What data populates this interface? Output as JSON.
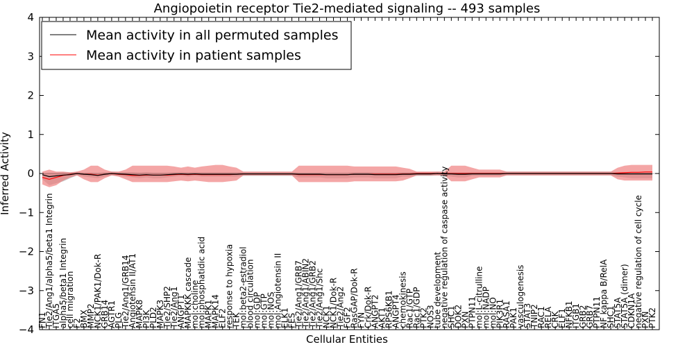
{
  "chart_data": {
    "type": "line",
    "title": "Angiopoietin receptor Tie2-mediated signaling -- 493 samples",
    "xlabel": "Cellular Entities",
    "ylabel": "Inferred Activity",
    "ylim": [
      -4,
      4
    ],
    "yticks": [
      -4,
      -3,
      -2,
      -1,
      0,
      1,
      2,
      3,
      4
    ],
    "grid": false,
    "legend_position": "top-left",
    "colors": {
      "permuted": "#000000",
      "patient": "#ff0000",
      "patient_band": "#f08080",
      "permuted_band": "#b0b0b0"
    },
    "categories": [
      "FN1",
      "Tie2/Ang1/alpha5/beta1 Integrin",
      "ITGA5",
      "alpha5/beta1 Integrin",
      "cell migration",
      "F2",
      "BMX",
      "MMP2",
      "NCK1/PAK1/Dok-R",
      "GRB14",
      "AGTR1",
      "PLG",
      "Tie2/Ang1/GRB14",
      "Angiotensin II/AT1",
      "MAPK8",
      "PI3K",
      "PLD2",
      "MAPK3",
      "Tie2/SHP2",
      "Tie2/Ang1",
      "ANGPT1",
      "MAPKKK cascade",
      "mol:choline",
      "mol:phosphatidic acid",
      "MAPK1",
      "MAPK14",
      "ELF2",
      "response to hypoxia",
      "TEK",
      "mol:beta2-estradiol",
      "blood circulation",
      "mol:GDP",
      "mol:GTP",
      "mol:NOS",
      "mol:Angiotensin II",
      "ELK1",
      "FES",
      "Tie2/Ang1/GRB7",
      "Tie2/Ang1/ABIN2",
      "Tie2/Ang1/GRB2",
      "Tie2/Ang1/Shc",
      "NCK1",
      "NCK1/Dok-R",
      "Tie2/Ang2",
      "FGF2",
      "RasGAP/Dok-R",
      "FYN",
      "Crk/Dok-R",
      "ANGPT2",
      "AKT1",
      "RPS6KB1",
      "ANGPT4",
      "chemokinesis",
      "Rac1/GTP",
      "Rac1/GDP",
      "PTK2",
      "NOS3",
      "tube development",
      "negative regulation of caspase activity",
      "SHC1",
      "DOK2",
      "PXN",
      "PTPN11",
      "mol:L-citrulline",
      "mol:NADP",
      "mol:NO",
      "PIK3R1",
      "RASA1",
      "PAK1",
      "vasculogenesis",
      "STAT3",
      "TNIP2",
      "RAC1",
      "RELA",
      "CRK",
      "ELF1",
      "NFKB1",
      "ITGB1",
      "GRB2",
      "GRB7",
      "PTPN11",
      "NF kappa B/RelA",
      "SHC1",
      "STAT5A",
      "STAT5A (dimer)",
      "CDKN1A",
      "negative regulation of cell cycle",
      "PXN",
      "PTK2"
    ],
    "series": [
      {
        "name": "Mean activity in all permuted samples",
        "color": "#000000",
        "values": [
          -0.03,
          -0.08,
          -0.06,
          -0.04,
          -0.03,
          0.0,
          -0.02,
          -0.03,
          -0.05,
          -0.02,
          0.0,
          -0.01,
          -0.02,
          -0.03,
          -0.04,
          -0.03,
          -0.04,
          -0.04,
          -0.03,
          -0.02,
          -0.01,
          -0.02,
          -0.01,
          -0.02,
          -0.02,
          -0.02,
          -0.02,
          -0.02,
          -0.02,
          -0.01,
          -0.01,
          -0.01,
          -0.01,
          -0.01,
          -0.01,
          -0.01,
          -0.01,
          -0.02,
          -0.02,
          -0.02,
          -0.02,
          -0.03,
          -0.03,
          -0.03,
          -0.03,
          -0.02,
          -0.02,
          -0.02,
          -0.03,
          -0.03,
          -0.03,
          -0.03,
          -0.02,
          -0.02,
          -0.01,
          -0.01,
          -0.01,
          0.0,
          -0.01,
          -0.01,
          -0.02,
          -0.02,
          -0.01,
          -0.01,
          -0.01,
          -0.01,
          -0.01,
          0.0,
          0.0,
          0.0,
          0.0,
          0.0,
          0.0,
          0.0,
          0.0,
          0.0,
          0.0,
          0.0,
          0.0,
          0.0,
          0.0,
          0.0,
          0.0,
          -0.01,
          -0.01,
          -0.01,
          -0.01,
          -0.01,
          -0.01
        ],
        "upper": [
          0.0,
          0.02,
          0.02,
          0.03,
          0.02,
          0.05,
          0.02,
          0.02,
          0.01,
          0.03,
          0.05,
          0.04,
          0.03,
          0.03,
          0.02,
          0.03,
          0.02,
          0.02,
          0.02,
          0.03,
          0.04,
          0.03,
          0.04,
          0.03,
          0.03,
          0.03,
          0.03,
          0.03,
          0.03,
          0.04,
          0.04,
          0.04,
          0.04,
          0.04,
          0.04,
          0.04,
          0.04,
          0.02,
          0.02,
          0.02,
          0.02,
          0.02,
          0.02,
          0.02,
          0.02,
          0.03,
          0.03,
          0.03,
          0.02,
          0.02,
          0.02,
          0.02,
          0.03,
          0.03,
          0.04,
          0.04,
          0.04,
          0.05,
          0.04,
          0.04,
          0.03,
          0.03,
          0.04,
          0.04,
          0.04,
          0.04,
          0.04,
          0.05,
          0.05,
          0.05,
          0.05,
          0.05,
          0.05,
          0.05,
          0.05,
          0.05,
          0.05,
          0.05,
          0.05,
          0.05,
          0.05,
          0.05,
          0.05,
          0.04,
          0.04,
          0.04,
          0.04,
          0.04,
          0.04
        ],
        "lower": [
          -0.15,
          -0.3,
          -0.25,
          -0.2,
          -0.12,
          -0.05,
          -0.08,
          -0.1,
          -0.12,
          -0.08,
          -0.05,
          -0.06,
          -0.08,
          -0.1,
          -0.12,
          -0.1,
          -0.12,
          -0.12,
          -0.1,
          -0.08,
          -0.06,
          -0.08,
          -0.06,
          -0.08,
          -0.08,
          -0.08,
          -0.08,
          -0.08,
          -0.08,
          -0.06,
          -0.06,
          -0.06,
          -0.06,
          -0.06,
          -0.06,
          -0.06,
          -0.06,
          -0.1,
          -0.1,
          -0.1,
          -0.1,
          -0.12,
          -0.12,
          -0.12,
          -0.12,
          -0.1,
          -0.1,
          -0.1,
          -0.12,
          -0.12,
          -0.12,
          -0.12,
          -0.08,
          -0.08,
          -0.06,
          -0.06,
          -0.06,
          -0.05,
          -0.06,
          -0.08,
          -0.1,
          -0.1,
          -0.06,
          -0.06,
          -0.06,
          -0.06,
          -0.06,
          -0.05,
          -0.05,
          -0.05,
          -0.05,
          -0.05,
          -0.05,
          -0.05,
          -0.05,
          -0.05,
          -0.05,
          -0.05,
          -0.05,
          -0.05,
          -0.05,
          -0.05,
          -0.05,
          -0.08,
          -0.1,
          -0.12,
          -0.12,
          -0.12,
          -0.12
        ]
      },
      {
        "name": "Mean activity in patient samples",
        "color": "#ff0000",
        "values": [
          -0.1,
          -0.15,
          -0.1,
          -0.05,
          -0.02,
          0.0,
          -0.02,
          -0.02,
          -0.04,
          -0.02,
          0.0,
          -0.02,
          -0.03,
          -0.05,
          -0.05,
          -0.04,
          -0.04,
          -0.04,
          -0.04,
          -0.03,
          -0.02,
          -0.03,
          -0.02,
          -0.03,
          -0.03,
          -0.03,
          -0.03,
          -0.03,
          -0.02,
          -0.01,
          -0.01,
          -0.01,
          -0.01,
          -0.01,
          -0.01,
          -0.01,
          -0.01,
          -0.03,
          -0.03,
          -0.03,
          -0.03,
          -0.03,
          -0.03,
          -0.03,
          -0.03,
          -0.02,
          -0.02,
          -0.02,
          -0.02,
          -0.02,
          -0.02,
          -0.02,
          -0.01,
          -0.01,
          0.0,
          0.0,
          0.0,
          0.0,
          0.0,
          0.0,
          0.0,
          0.0,
          0.0,
          0.0,
          0.0,
          0.0,
          0.0,
          0.0,
          0.0,
          0.0,
          0.0,
          0.0,
          0.0,
          0.0,
          0.0,
          0.0,
          0.0,
          0.0,
          0.0,
          0.0,
          0.0,
          0.0,
          0.0,
          0.01,
          0.02,
          0.03,
          0.03,
          0.04,
          0.04
        ],
        "upper": [
          0.05,
          0.1,
          0.05,
          0.05,
          0.03,
          0.05,
          0.1,
          0.2,
          0.2,
          0.1,
          0.05,
          0.05,
          0.1,
          0.2,
          0.2,
          0.2,
          0.2,
          0.2,
          0.2,
          0.18,
          0.15,
          0.18,
          0.15,
          0.18,
          0.2,
          0.22,
          0.22,
          0.18,
          0.15,
          0.05,
          0.05,
          0.05,
          0.05,
          0.05,
          0.05,
          0.05,
          0.05,
          0.2,
          0.2,
          0.2,
          0.2,
          0.2,
          0.2,
          0.2,
          0.2,
          0.18,
          0.18,
          0.18,
          0.18,
          0.18,
          0.18,
          0.18,
          0.15,
          0.12,
          0.05,
          0.05,
          0.05,
          0.05,
          0.05,
          0.2,
          0.2,
          0.2,
          0.15,
          0.1,
          0.1,
          0.1,
          0.1,
          0.05,
          0.05,
          0.05,
          0.05,
          0.05,
          0.05,
          0.05,
          0.05,
          0.05,
          0.05,
          0.05,
          0.05,
          0.05,
          0.05,
          0.05,
          0.05,
          0.15,
          0.2,
          0.22,
          0.22,
          0.22,
          0.22
        ],
        "lower": [
          -0.28,
          -0.35,
          -0.3,
          -0.18,
          -0.1,
          -0.05,
          -0.15,
          -0.22,
          -0.22,
          -0.12,
          -0.05,
          -0.08,
          -0.15,
          -0.22,
          -0.22,
          -0.22,
          -0.22,
          -0.22,
          -0.22,
          -0.2,
          -0.18,
          -0.2,
          -0.18,
          -0.2,
          -0.22,
          -0.22,
          -0.22,
          -0.2,
          -0.18,
          -0.05,
          -0.05,
          -0.05,
          -0.05,
          -0.05,
          -0.05,
          -0.05,
          -0.05,
          -0.22,
          -0.22,
          -0.22,
          -0.22,
          -0.22,
          -0.22,
          -0.22,
          -0.22,
          -0.2,
          -0.2,
          -0.2,
          -0.2,
          -0.2,
          -0.2,
          -0.2,
          -0.18,
          -0.12,
          -0.05,
          -0.05,
          -0.05,
          -0.05,
          -0.05,
          -0.2,
          -0.2,
          -0.2,
          -0.15,
          -0.1,
          -0.1,
          -0.1,
          -0.1,
          -0.05,
          -0.05,
          -0.05,
          -0.05,
          -0.05,
          -0.05,
          -0.05,
          -0.05,
          -0.05,
          -0.05,
          -0.05,
          -0.05,
          -0.05,
          -0.05,
          -0.05,
          -0.05,
          -0.15,
          -0.18,
          -0.18,
          -0.18,
          -0.18,
          -0.18
        ]
      }
    ]
  }
}
